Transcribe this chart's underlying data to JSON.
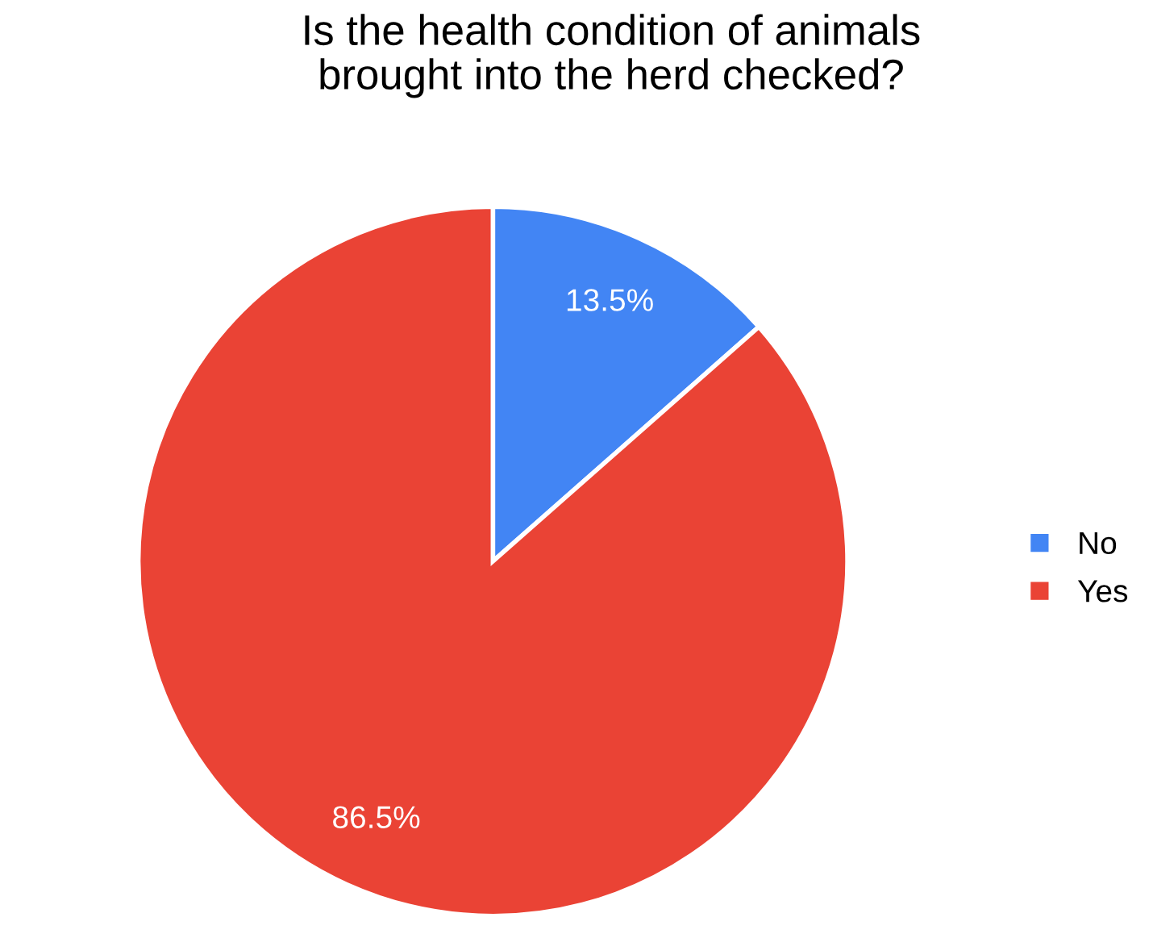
{
  "chart_data": {
    "type": "pie",
    "title": "Is the health condition of animals\nbrought into the herd checked?",
    "categories": [
      "No",
      "Yes"
    ],
    "values": [
      13.5,
      86.5
    ],
    "colors": [
      "#4285f4",
      "#ea4335"
    ],
    "value_labels": [
      "13.5%",
      "86.5%"
    ],
    "legend": "right"
  }
}
